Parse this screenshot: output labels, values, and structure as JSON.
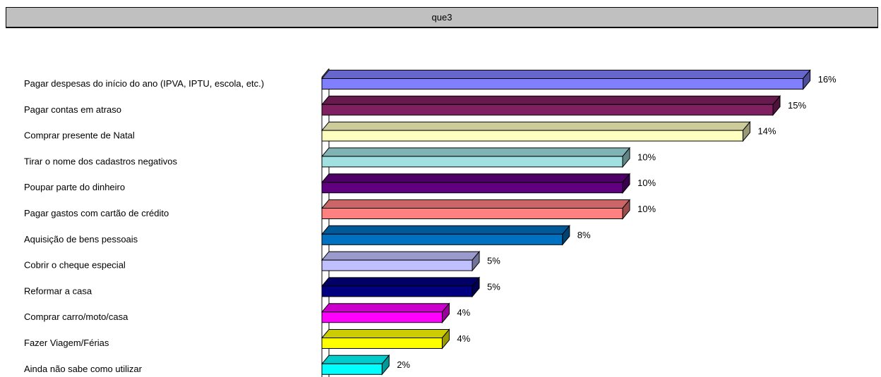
{
  "window": {
    "title": "que3"
  },
  "chart_data": {
    "type": "bar",
    "orientation": "horizontal",
    "style": "3d",
    "title": "que3",
    "xlabel": "",
    "ylabel": "",
    "grid": false,
    "legend": "none",
    "value_suffix": "%",
    "categories": [
      "Pagar despesas do início do ano (IPVA, IPTU, escola, etc.)",
      "Pagar contas em atraso",
      "Comprar presente de Natal",
      "Tirar o nome dos cadastros negativos",
      "Poupar parte do dinheiro",
      "Pagar gastos com cartão de crédito",
      "Aquisição de bens pessoais",
      "Cobrir o cheque especial",
      "Reformar a casa",
      "Comprar carro/moto/casa",
      "Fazer Viagem/Férias",
      "Ainda não sabe como utilizar"
    ],
    "values": [
      16,
      15,
      14,
      10,
      10,
      10,
      8,
      5,
      5,
      4,
      4,
      2
    ],
    "value_labels": [
      "16%",
      "15%",
      "14%",
      "10%",
      "10%",
      "10%",
      "8%",
      "5%",
      "5%",
      "4%",
      "4%",
      "2%"
    ],
    "colors": [
      "#8080ff",
      "#802060",
      "#ffffc0",
      "#a0e0e0",
      "#600080",
      "#ff8080",
      "#0070c0",
      "#c0c0ff",
      "#000080",
      "#ff00ff",
      "#ffff00",
      "#00ffff"
    ]
  }
}
